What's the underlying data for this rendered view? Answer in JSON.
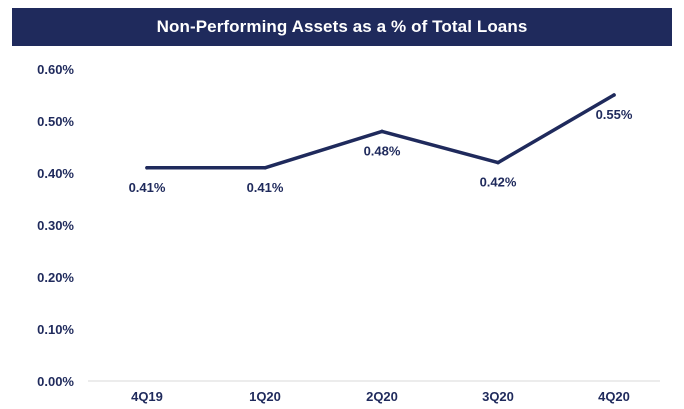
{
  "chart_data": {
    "type": "line",
    "title": "Non-Performing Assets as a % of Total Loans",
    "categories": [
      "4Q19",
      "1Q20",
      "2Q20",
      "3Q20",
      "4Q20"
    ],
    "series": [
      {
        "values": [
          0.41,
          0.41,
          0.48,
          0.42,
          0.55
        ]
      }
    ],
    "data_labels": [
      "0.41%",
      "0.41%",
      "0.48%",
      "0.42%",
      "0.55%"
    ],
    "yticks": [
      "0.00%",
      "0.10%",
      "0.20%",
      "0.30%",
      "0.40%",
      "0.50%",
      "0.60%"
    ],
    "ylim": [
      0,
      0.6
    ],
    "grid": false,
    "legend": "none",
    "line_color": "#1f2a5c"
  }
}
